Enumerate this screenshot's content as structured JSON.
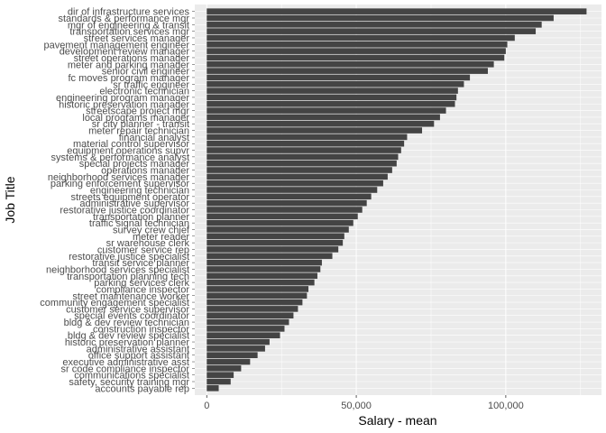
{
  "chart_data": {
    "type": "bar",
    "orientation": "horizontal",
    "xlabel": "Salary - mean",
    "ylabel": "Job Title",
    "xlim": [
      -4000,
      132000
    ],
    "x_ticks": [
      0,
      50000,
      100000
    ],
    "x_tick_labels": [
      "0",
      "50,000",
      "100,000"
    ],
    "grid": true,
    "legend": "none",
    "colors": {
      "panel": "#ebebeb",
      "bar": "#444444",
      "grid": "#ffffff"
    },
    "categories": [
      "dir of infrastructure services",
      "standards & performance mgr",
      "mgr of engineering & transit",
      "transportation services mgr",
      "street services manager",
      "pavement management engineer",
      "development review manager",
      "street operations manager",
      "meter and parking manager",
      "senior civil engineer",
      "fc moves program manager",
      "sr traffic engineer",
      "electronic technician",
      "engineering program manager",
      "historic preservation manager",
      "streetscape project mgr",
      "local programs manager",
      "sr city planner - transit",
      "meter repair technician",
      "financial analyst",
      "material control supervisor",
      "equipment operations supvr",
      "systems & performance analyst",
      "special projects manager",
      "operations manager",
      "neighborhood services manager",
      "parking enforcement supervisor",
      "engineering technician",
      "streets equipment operator",
      "administrative supervisor",
      "restorative justice coordinator",
      "transportation planner",
      "traffic signal technician",
      "survey crew chief",
      "meter reader",
      "sr warehouse clerk",
      "customer service rep",
      "restorative justice specialist",
      "transit service planner",
      "neighborhood services specialist",
      "transportation planning tech",
      "parking services clerk",
      "compliance inspector",
      "street maintenance worker",
      "community engagement specialist",
      "customer service supervisor",
      "special events coordinator",
      "bldg & dev review technician",
      "construction inspector",
      "bldg & dev review specialist",
      "historic preservation planner",
      "administrative assistant",
      "office support assistant",
      "executive administrative asst",
      "sr code compliance inspector",
      "communications specialist",
      "safety, security training mgr",
      "accounts payable rep"
    ],
    "values": [
      127000,
      116000,
      112000,
      110000,
      103000,
      100500,
      100000,
      99500,
      96000,
      94000,
      88000,
      86000,
      84000,
      83500,
      83000,
      80000,
      78000,
      76000,
      72000,
      67000,
      66000,
      65000,
      64000,
      63500,
      62000,
      60500,
      59000,
      57000,
      55000,
      53500,
      52000,
      50500,
      49000,
      47500,
      46000,
      45500,
      44000,
      42000,
      38500,
      38000,
      37000,
      36000,
      34000,
      33500,
      32000,
      30500,
      29000,
      27500,
      26000,
      24500,
      21000,
      19500,
      17000,
      14500,
      11500,
      9000,
      8000,
      4000
    ]
  }
}
